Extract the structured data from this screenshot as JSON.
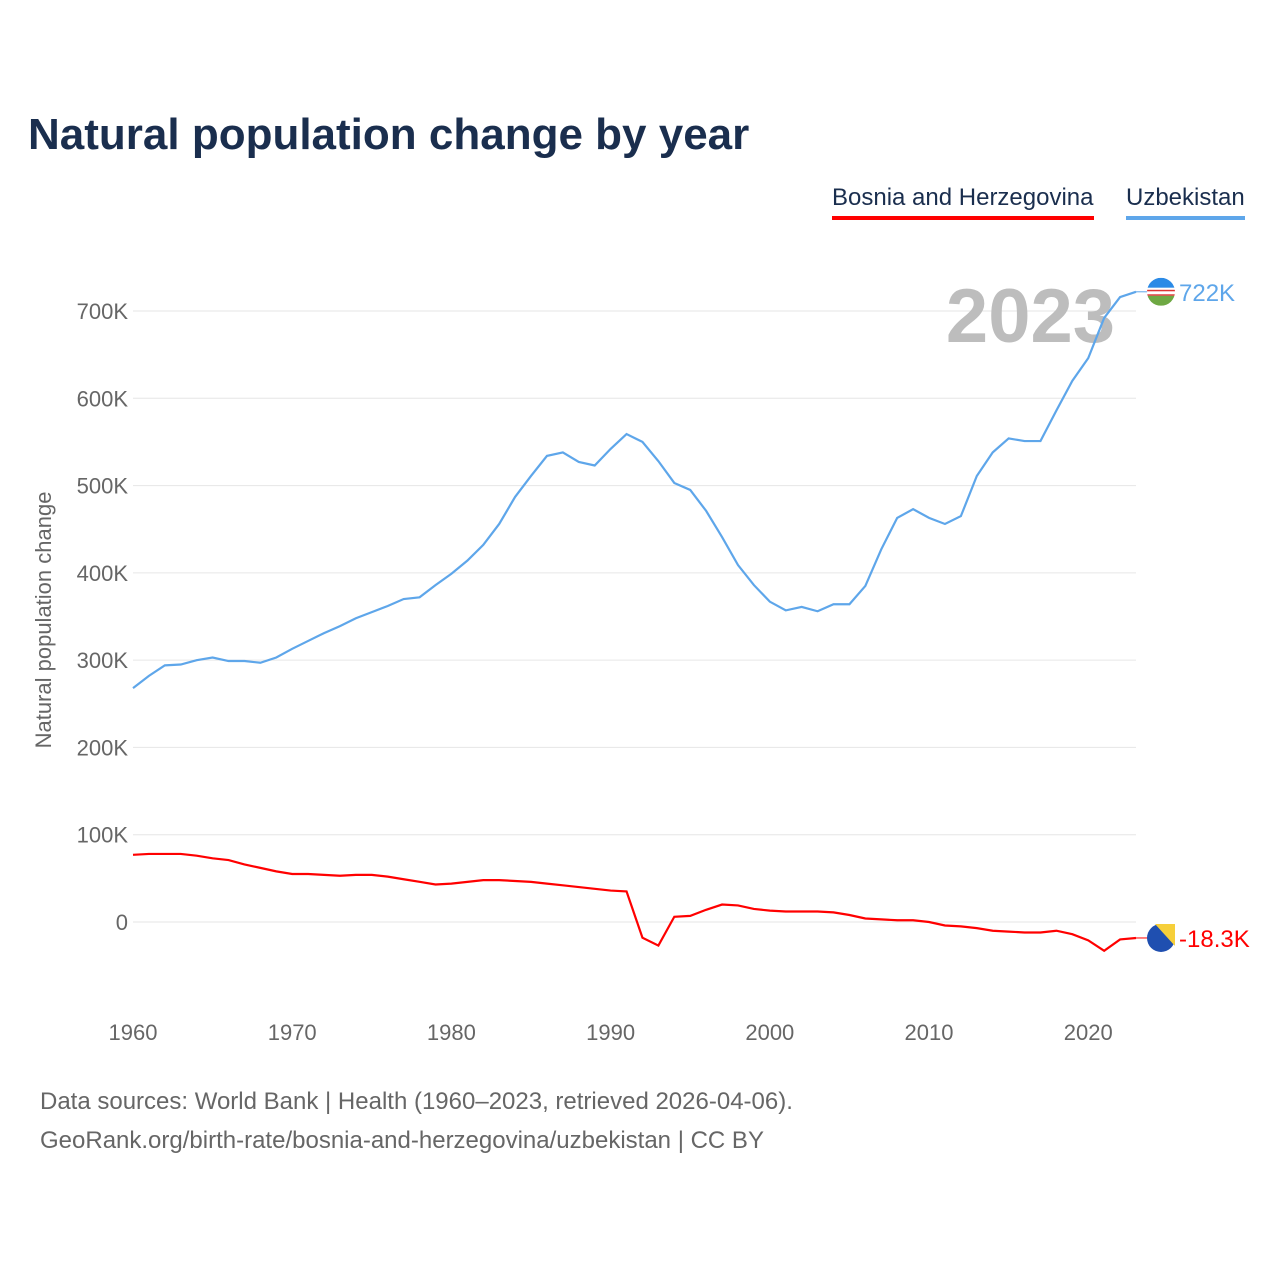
{
  "title": "Natural population change by year",
  "legend": [
    "Bosnia and Herzegovina",
    "Uzbekistan"
  ],
  "source_line1": "Data sources: World Bank | Health (1960–2023, retrieved 2026-04-06).",
  "source_line2": "GeoRank.org/birth-rate/bosnia-and-herzegovina/uzbekistan | CC BY",
  "chart_data": {
    "type": "line",
    "title": "Natural population change by year",
    "xlabel": "",
    "ylabel": "Natural population change",
    "year_overlay": "2023",
    "xlim": [
      1960,
      2023
    ],
    "ylim": [
      -100000,
      750000
    ],
    "x_ticks": [
      1960,
      1970,
      1980,
      1990,
      2000,
      2010,
      2020
    ],
    "y_ticks": [
      0,
      100000,
      200000,
      300000,
      400000,
      500000,
      600000,
      700000
    ],
    "y_tick_labels": [
      "0",
      "100K",
      "200K",
      "300K",
      "400K",
      "500K",
      "600K",
      "700K"
    ],
    "grid": true,
    "legend_position": "top-right",
    "x": [
      1960,
      1961,
      1962,
      1963,
      1964,
      1965,
      1966,
      1967,
      1968,
      1969,
      1970,
      1971,
      1972,
      1973,
      1974,
      1975,
      1976,
      1977,
      1978,
      1979,
      1980,
      1981,
      1982,
      1983,
      1984,
      1985,
      1986,
      1987,
      1988,
      1989,
      1990,
      1991,
      1992,
      1993,
      1994,
      1995,
      1996,
      1997,
      1998,
      1999,
      2000,
      2001,
      2002,
      2003,
      2004,
      2005,
      2006,
      2007,
      2008,
      2009,
      2010,
      2011,
      2012,
      2013,
      2014,
      2015,
      2016,
      2017,
      2018,
      2019,
      2020,
      2021,
      2022,
      2023
    ],
    "series": [
      {
        "name": "Uzbekistan",
        "color": "#5ea6ea",
        "end_label": "722K",
        "values": [
          268000,
          282000,
          294000,
          295000,
          300000,
          303000,
          299000,
          299000,
          297000,
          303000,
          313000,
          322000,
          331000,
          339000,
          348000,
          355000,
          362000,
          370000,
          372000,
          386000,
          399000,
          414000,
          432000,
          456000,
          487000,
          511000,
          534000,
          538000,
          527000,
          523000,
          542000,
          559000,
          550000,
          528000,
          503000,
          495000,
          471000,
          441000,
          409000,
          386000,
          367000,
          357000,
          361000,
          356000,
          364000,
          364000,
          385000,
          427000,
          463000,
          473000,
          463000,
          456000,
          465000,
          511000,
          538000,
          554000,
          551000,
          551000,
          586000,
          620000,
          646000,
          692000,
          716000,
          722000
        ]
      },
      {
        "name": "Bosnia and Herzegovina",
        "color": "#ff0000",
        "end_label": "-18.3K",
        "values": [
          77000,
          78000,
          78000,
          78000,
          76000,
          73000,
          71000,
          66000,
          62000,
          58000,
          55000,
          55000,
          54000,
          53000,
          54000,
          54000,
          52000,
          49000,
          46000,
          43000,
          44000,
          46000,
          48000,
          48000,
          47000,
          46000,
          44000,
          42000,
          40000,
          38000,
          36000,
          35000,
          -18000,
          -27000,
          6000,
          7000,
          14000,
          20000,
          19000,
          15000,
          13000,
          12000,
          12000,
          12000,
          11000,
          8000,
          4000,
          3000,
          2000,
          2000,
          0,
          -4000,
          -5000,
          -7000,
          -10000,
          -11000,
          -12000,
          -12000,
          -10000,
          -14000,
          -21000,
          -33000,
          -20000,
          -18300
        ]
      }
    ]
  }
}
